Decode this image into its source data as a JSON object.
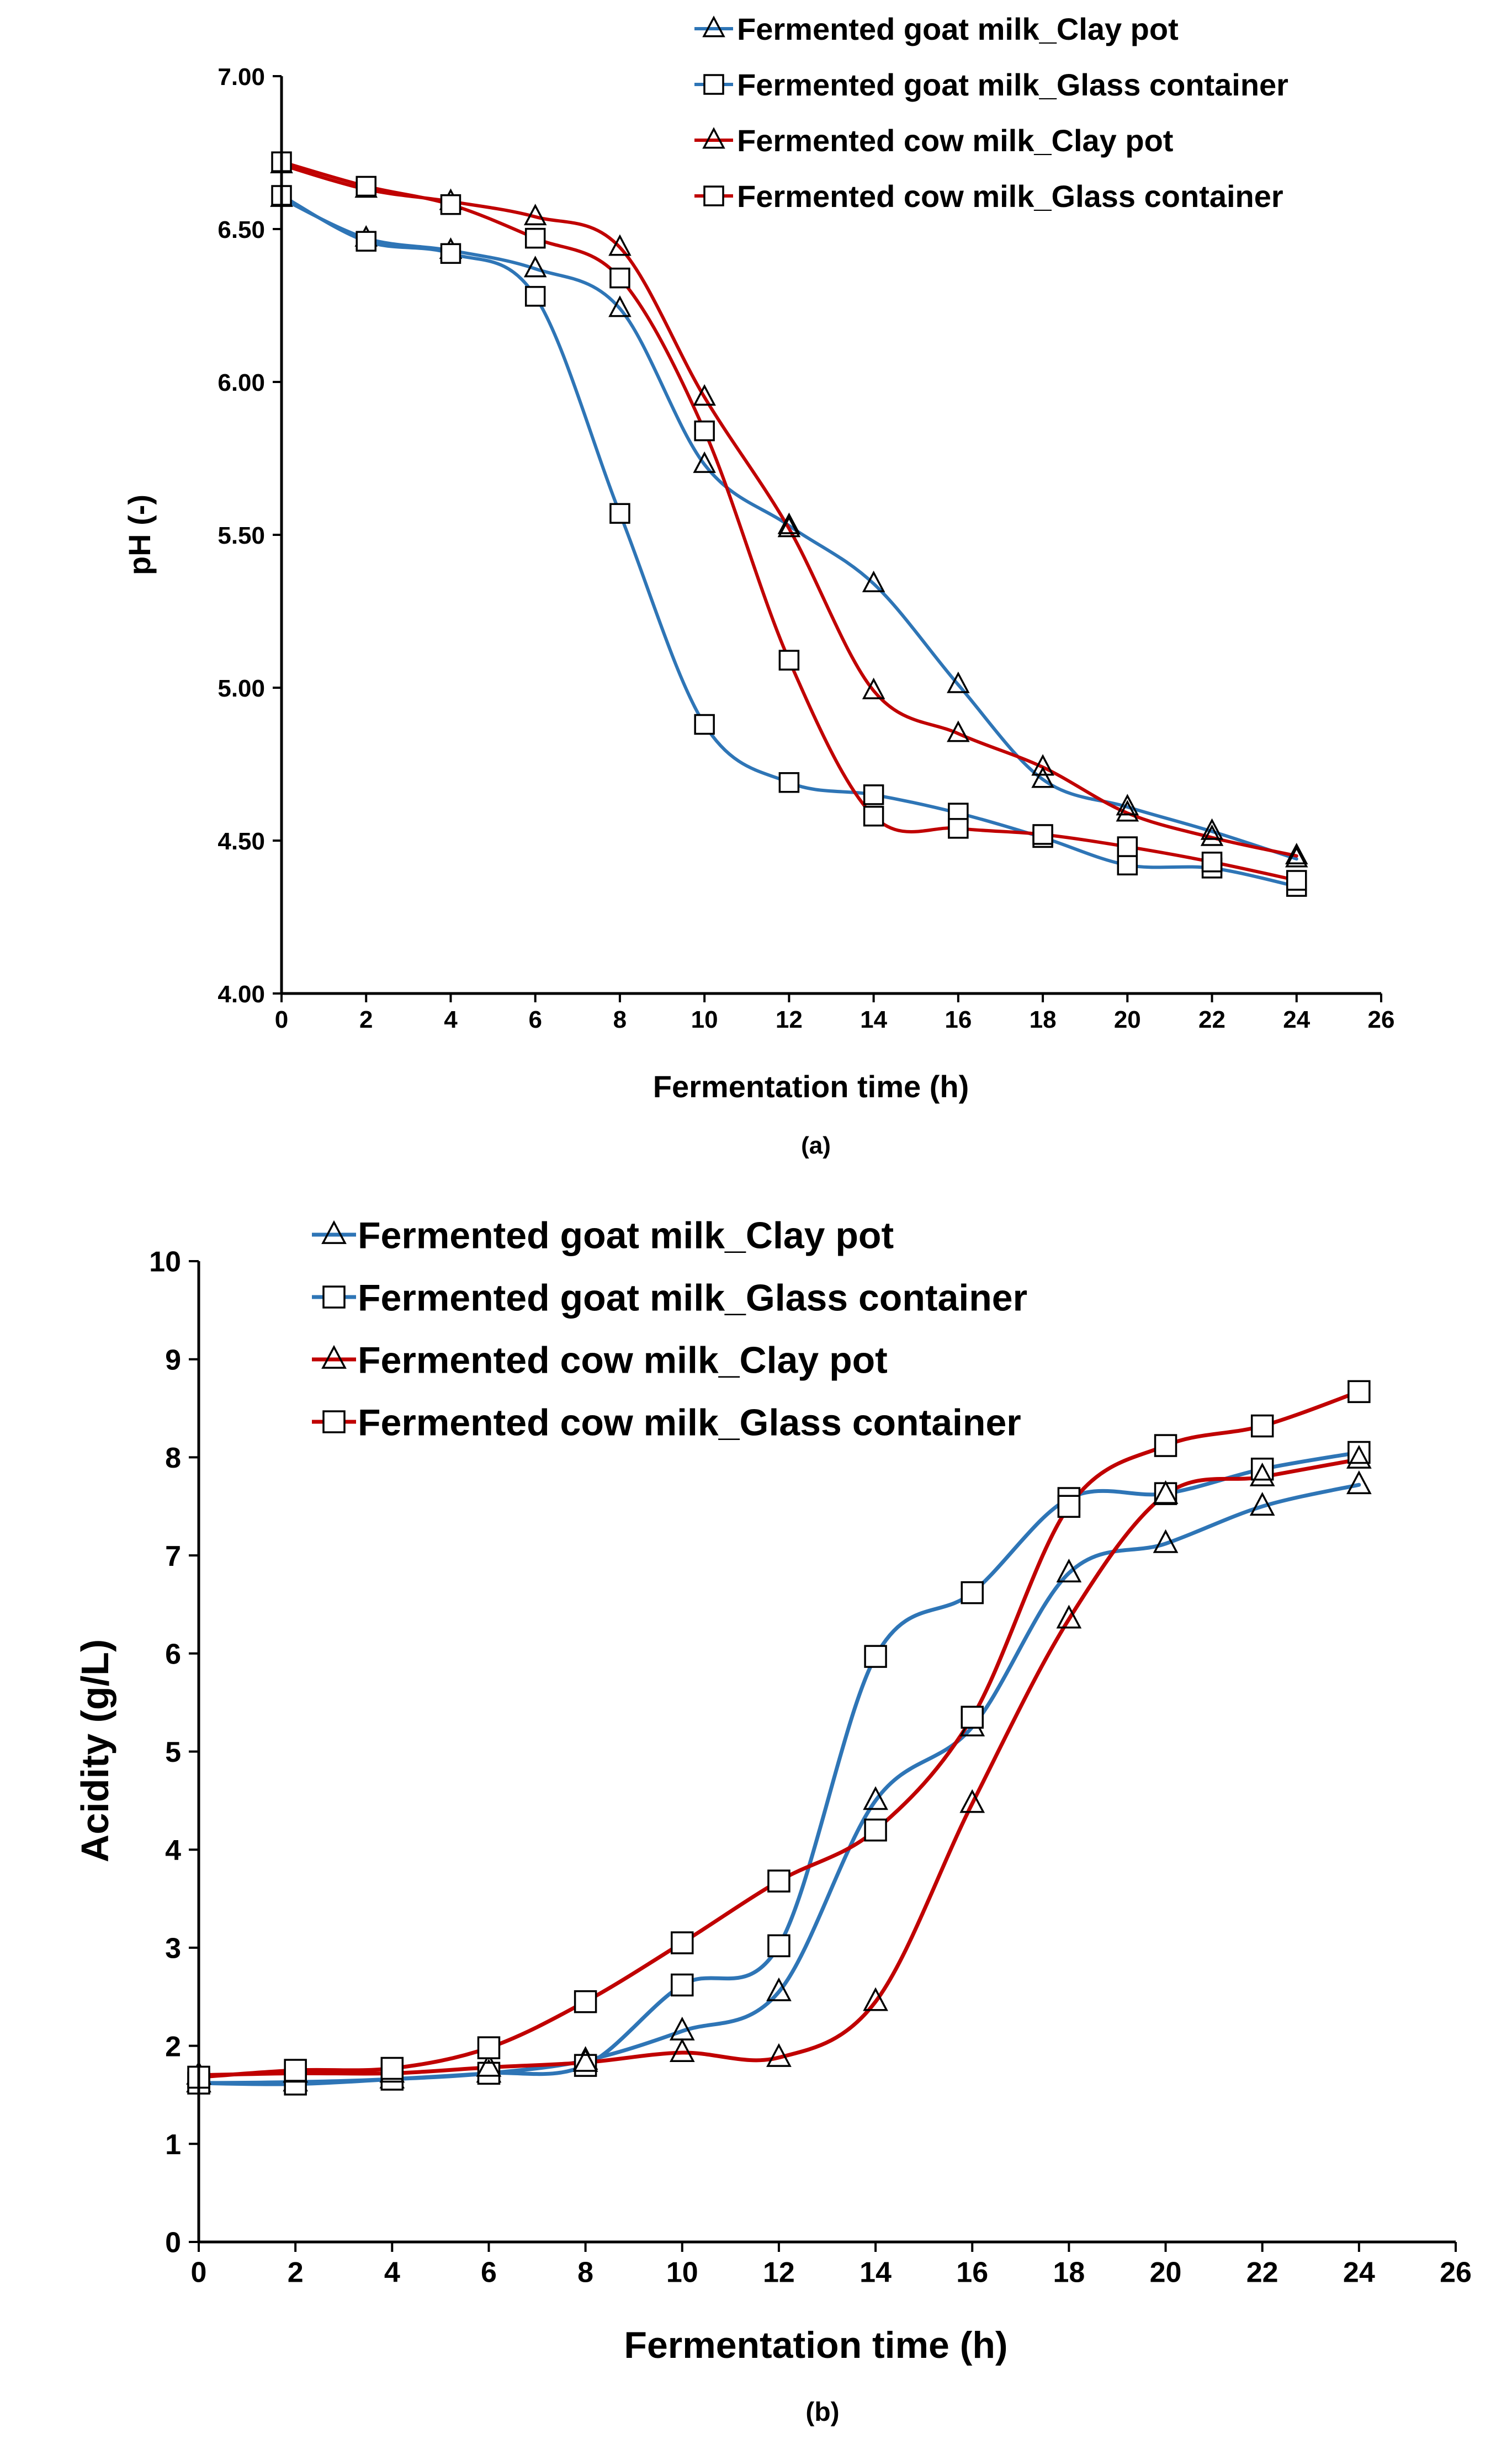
{
  "colors": {
    "goat": "#2E75B6",
    "cow": "#C00000",
    "axis": "#000000",
    "marker_fill": "#ffffff"
  },
  "chart_data": [
    {
      "id": "a",
      "type": "line",
      "caption": "(a)",
      "xlabel": "Fermentation time (h)",
      "ylabel": "pH (-)",
      "xlim": [
        0,
        26
      ],
      "ylim": [
        4.0,
        7.0
      ],
      "xticks": [
        "0",
        "2",
        "4",
        "6",
        "8",
        "10",
        "12",
        "14",
        "16",
        "18",
        "20",
        "22",
        "24",
        "26"
      ],
      "yticks": [
        "4.00",
        "4.50",
        "5.00",
        "5.50",
        "6.00",
        "6.50",
        "7.00"
      ],
      "legend_position": "top-right",
      "x": [
        0,
        2,
        4,
        6,
        8,
        10,
        12,
        14,
        16,
        18,
        20,
        22,
        24
      ],
      "series": [
        {
          "name": "Fermented goat milk_Clay pot",
          "color": "goat",
          "marker": "triangle",
          "values": [
            6.6,
            6.47,
            6.43,
            6.37,
            6.24,
            5.73,
            5.53,
            5.34,
            5.01,
            4.7,
            4.61,
            4.53,
            4.44
          ]
        },
        {
          "name": "Fermented goat milk_Glass container",
          "color": "goat",
          "marker": "square",
          "values": [
            6.61,
            6.46,
            6.42,
            6.28,
            5.57,
            4.88,
            4.69,
            4.65,
            4.59,
            4.51,
            4.42,
            4.41,
            4.35
          ]
        },
        {
          "name": "Fermented cow milk_Clay pot",
          "color": "cow",
          "marker": "triangle",
          "values": [
            6.71,
            6.63,
            6.59,
            6.54,
            6.44,
            5.95,
            5.52,
            4.99,
            4.85,
            4.74,
            4.59,
            4.51,
            4.45
          ]
        },
        {
          "name": "Fermented cow milk_Glass container",
          "color": "cow",
          "marker": "square",
          "values": [
            6.72,
            6.64,
            6.58,
            6.47,
            6.34,
            5.84,
            5.09,
            4.58,
            4.54,
            4.52,
            4.48,
            4.43,
            4.37
          ]
        }
      ]
    },
    {
      "id": "b",
      "type": "line",
      "caption": "(b)",
      "xlabel": "Fermentation time (h)",
      "ylabel": "Acidity (g/L)",
      "xlim": [
        0,
        26
      ],
      "ylim": [
        0,
        10
      ],
      "xticks": [
        "0",
        "2",
        "4",
        "6",
        "8",
        "10",
        "12",
        "14",
        "16",
        "18",
        "20",
        "22",
        "24",
        "26"
      ],
      "yticks": [
        "0",
        "1",
        "2",
        "3",
        "4",
        "5",
        "6",
        "7",
        "8",
        "9",
        "10"
      ],
      "legend_position": "top-left",
      "x": [
        0,
        2,
        4,
        6,
        8,
        10,
        12,
        14,
        16,
        18,
        20,
        22,
        24
      ],
      "series": [
        {
          "name": "Fermented goat milk_Clay pot",
          "color": "goat",
          "marker": "triangle",
          "values": [
            1.62,
            1.63,
            1.66,
            1.72,
            1.85,
            2.15,
            2.55,
            4.5,
            5.25,
            6.82,
            7.12,
            7.5,
            7.72
          ]
        },
        {
          "name": "Fermented goat milk_Glass container",
          "color": "goat",
          "marker": "square",
          "values": [
            1.62,
            1.61,
            1.66,
            1.72,
            1.8,
            2.62,
            3.02,
            5.97,
            6.62,
            7.58,
            7.63,
            7.88,
            8.05
          ]
        },
        {
          "name": "Fermented cow milk_Clay pot",
          "color": "cow",
          "marker": "triangle",
          "values": [
            1.7,
            1.72,
            1.72,
            1.78,
            1.83,
            1.93,
            1.88,
            2.45,
            4.47,
            6.35,
            7.62,
            7.8,
            7.98
          ]
        },
        {
          "name": "Fermented cow milk_Glass container",
          "color": "cow",
          "marker": "square",
          "values": [
            1.68,
            1.75,
            1.77,
            1.98,
            2.45,
            3.05,
            3.68,
            4.2,
            5.35,
            7.5,
            8.12,
            8.32,
            8.67
          ]
        }
      ]
    }
  ]
}
